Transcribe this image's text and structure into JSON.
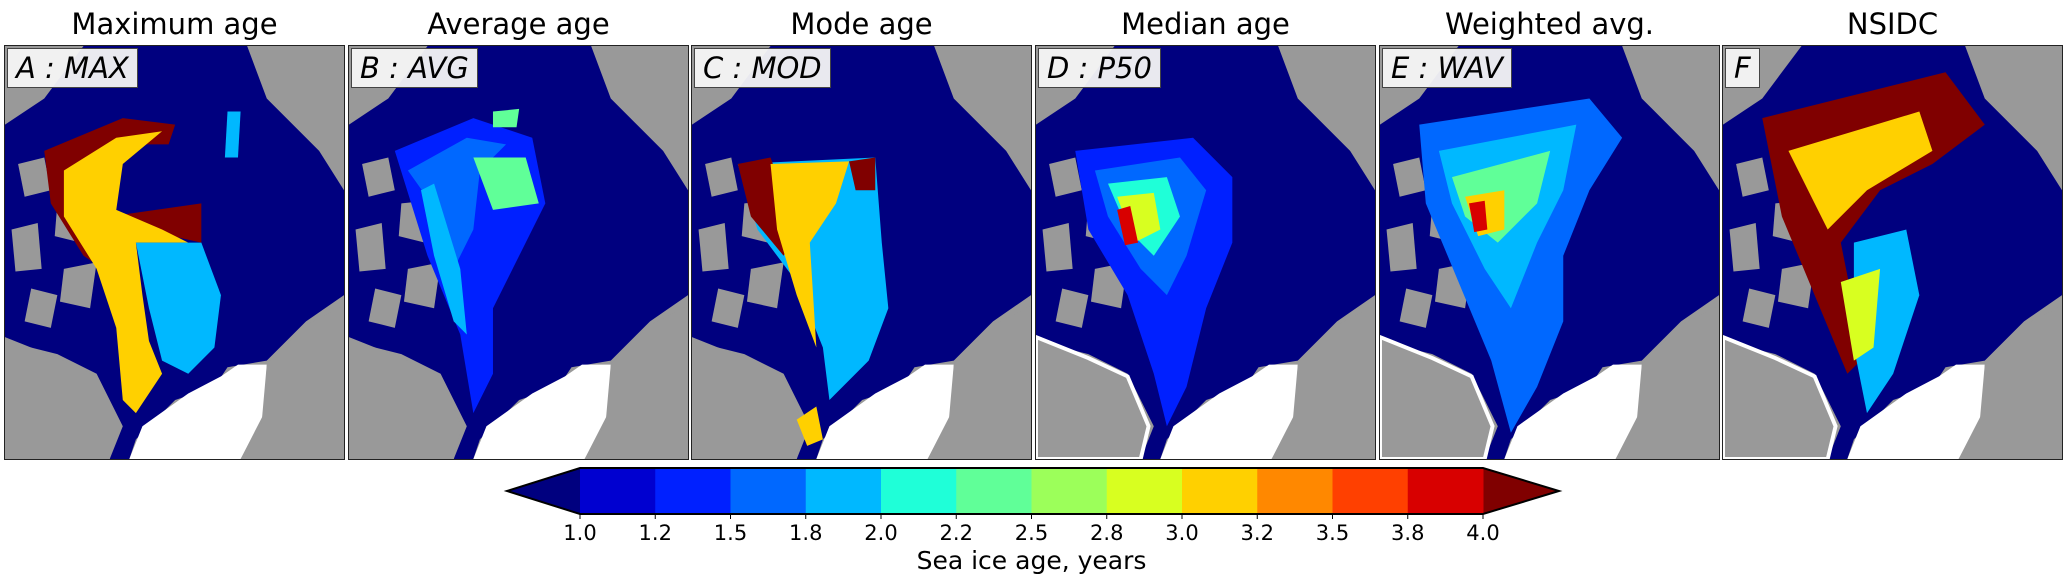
{
  "panels": [
    {
      "title": "Maximum age",
      "label": "A : MAX"
    },
    {
      "title": "Average age",
      "label": "B : AVG"
    },
    {
      "title": "Mode age",
      "label": "C : MOD"
    },
    {
      "title": "Median age",
      "label": "D : P50"
    },
    {
      "title": "Weighted avg.",
      "label": "E : WAV"
    },
    {
      "title": "NSIDC",
      "label": "F"
    }
  ],
  "colorbar": {
    "label": "Sea ice age, years",
    "ticks": [
      "1.0",
      "1.2",
      "1.5",
      "1.8",
      "2.0",
      "2.2",
      "2.5",
      "2.8",
      "3.0",
      "3.2",
      "3.5",
      "3.8",
      "4.0"
    ],
    "under_color": "#00007f",
    "over_color": "#800000",
    "colors": [
      "#0000d0",
      "#0020ff",
      "#0068ff",
      "#00b8ff",
      "#1fffd8",
      "#60ff98",
      "#9cff5a",
      "#d8ff20",
      "#ffd000",
      "#ff8800",
      "#ff4000",
      "#d80000"
    ],
    "extend": "both"
  },
  "map_colors": {
    "land": "#999999",
    "open_water": "#ffffff",
    "lake": "#9fe0e0"
  }
}
